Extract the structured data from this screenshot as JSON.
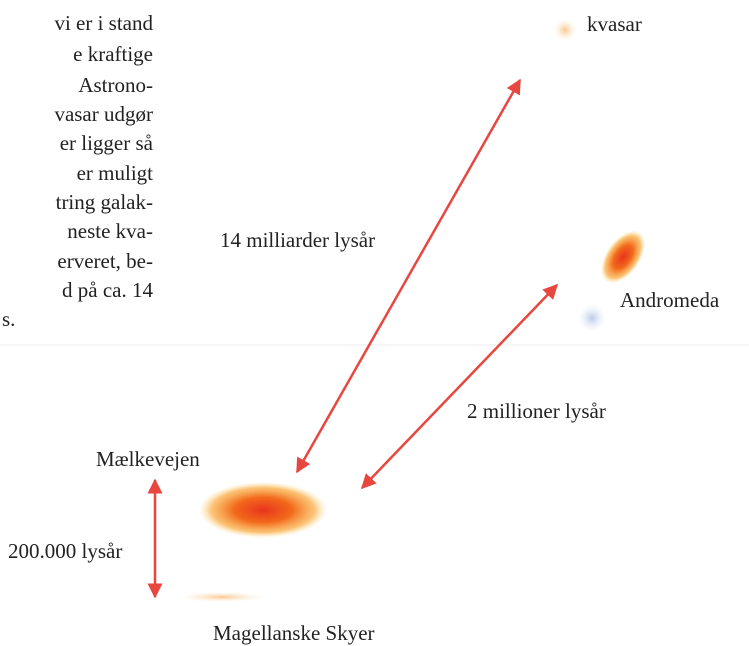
{
  "paragraph": {
    "lines": [
      "vi er i stand",
      "e kraftige",
      "Astrono-",
      "vasar udgør",
      "er ligger så",
      "er muligt",
      "tring galak-",
      "neste kva-",
      "erveret, be-",
      "d på ca. 14",
      "s."
    ]
  },
  "labels": {
    "quasar": "kvasar",
    "quasar_distance": "14 milliarder lysår",
    "andromeda": "Andromeda",
    "andromeda_distance": "2 millioner lysår",
    "milky_way": "Mælkevejen",
    "milky_way_size": "200.000 lysår",
    "magellanic": "Magellanske Skyer"
  }
}
